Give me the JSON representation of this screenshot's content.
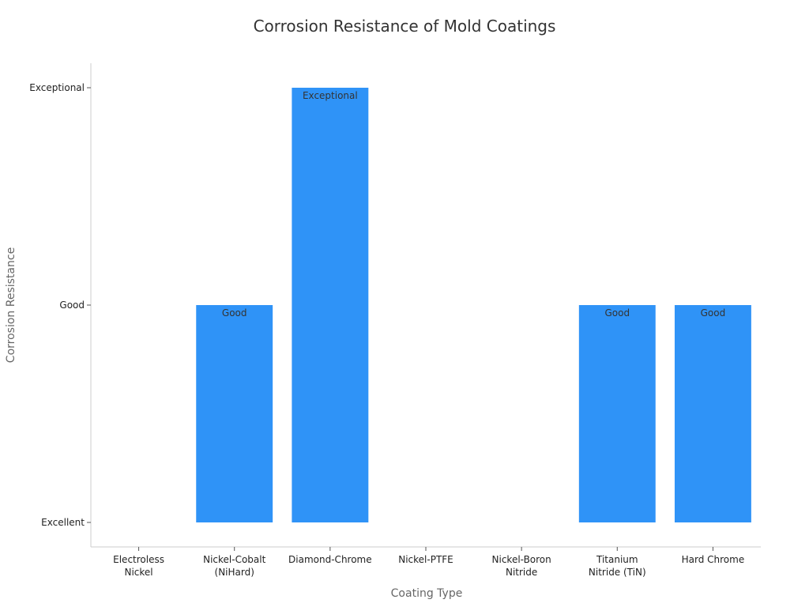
{
  "chart_data": {
    "type": "bar",
    "title": "Corrosion Resistance of Mold Coatings",
    "xlabel": "Coating Type",
    "ylabel": "Corrosion Resistance",
    "categories": [
      [
        "Electroless",
        "Nickel"
      ],
      [
        "Nickel-Cobalt",
        "(NiHard)"
      ],
      [
        "Diamond-Chrome"
      ],
      [
        "Nickel-PTFE"
      ],
      [
        "Nickel-Boron",
        "Nitride"
      ],
      [
        "Titanium",
        "Nitride (TiN)"
      ],
      [
        "Hard Chrome"
      ]
    ],
    "y_levels": [
      "Excellent",
      "Good",
      "Exceptional"
    ],
    "values": [
      "Excellent",
      "Good",
      "Exceptional",
      "Excellent",
      "Excellent",
      "Good",
      "Good"
    ],
    "data_labels": [
      "",
      "Good",
      "Exceptional",
      "",
      "",
      "Good",
      "Good"
    ],
    "bar_color": "#2f93f7",
    "grid": false,
    "legend": "none"
  }
}
